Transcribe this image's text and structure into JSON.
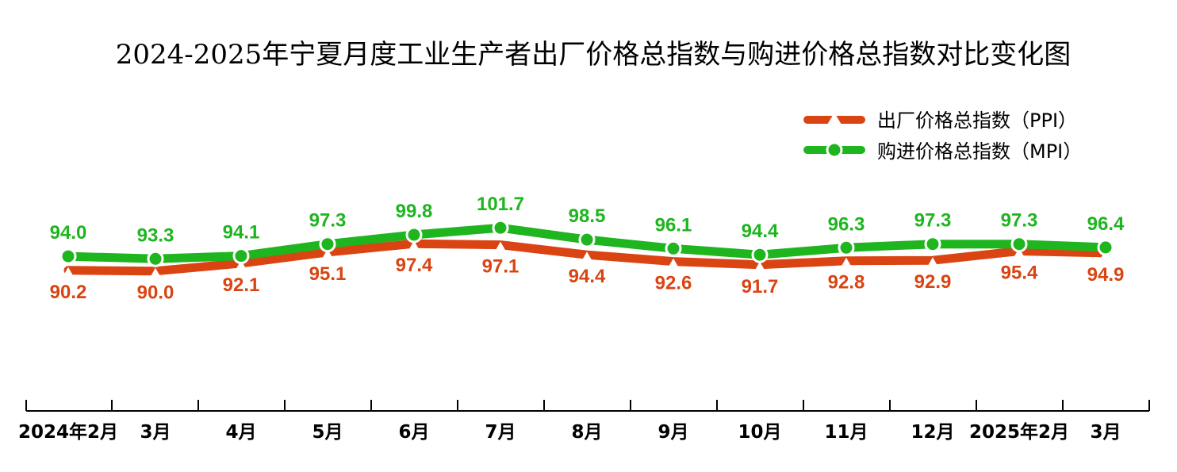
{
  "chart_data": {
    "type": "line",
    "title": "2024-2025年宁夏月度工业生产者出厂价格总指数与购进价格总指数对比变化图",
    "categories": [
      "2024年2月",
      "3月",
      "4月",
      "5月",
      "6月",
      "7月",
      "8月",
      "9月",
      "10月",
      "11月",
      "12月",
      "2025年2月",
      "3月"
    ],
    "series": [
      {
        "key": "ppi",
        "name": "出厂价格总指数（PPI）",
        "color": "#d94412",
        "marker": "triangle",
        "values": [
          90.2,
          90.0,
          92.1,
          95.1,
          97.4,
          97.1,
          94.4,
          92.6,
          91.7,
          92.8,
          92.9,
          95.4,
          94.9
        ]
      },
      {
        "key": "mpi",
        "name": "购进价格总指数（MPI）",
        "color": "#1fb51f",
        "marker": "circle",
        "values": [
          94.0,
          93.3,
          94.1,
          97.3,
          99.8,
          101.7,
          98.5,
          96.1,
          94.4,
          96.3,
          97.3,
          97.3,
          96.4
        ]
      }
    ],
    "value_labels": {
      "ppi": [
        "90.2",
        "90.0",
        "92.1",
        "95.1",
        "97.4",
        "97.1",
        "94.4",
        "92.6",
        "91.7",
        "92.8",
        "92.9",
        "95.4",
        "94.9"
      ],
      "mpi": [
        "94.0",
        "93.3",
        "94.1",
        "97.3",
        "99.8",
        "101.7",
        "98.5",
        "96.1",
        "94.4",
        "96.3",
        "97.3",
        "97.3",
        "96.4"
      ]
    },
    "legend_position": "top-right",
    "grid": false,
    "y_axis_visible": false
  }
}
